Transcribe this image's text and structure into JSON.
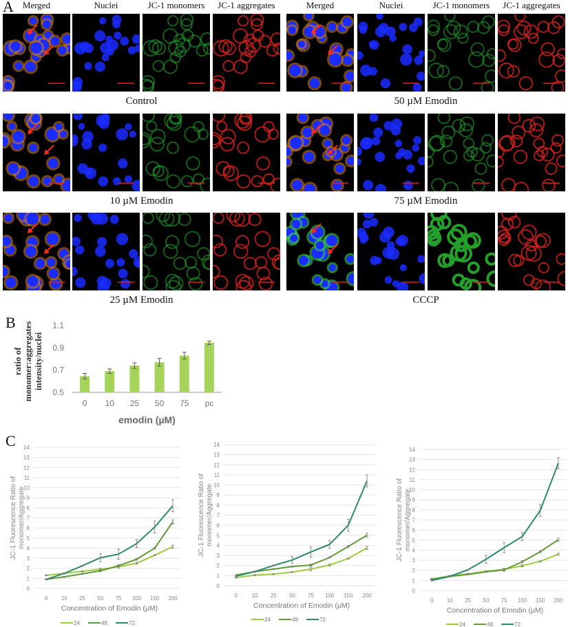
{
  "panel_a": {
    "label": "A",
    "column_headers": [
      "Merged",
      "Nuclei",
      "JC-1 monomers",
      "JC-1 aggregates"
    ],
    "conditions": [
      {
        "caption": "Control",
        "group": "left",
        "row": 0
      },
      {
        "caption": "10 µM Emodin",
        "group": "left",
        "row": 1
      },
      {
        "caption": "25 µM Emodin",
        "group": "left",
        "row": 2
      },
      {
        "caption": "50 µM Emodin",
        "group": "right",
        "row": 0
      },
      {
        "caption": "75 µM Emodin",
        "group": "right",
        "row": 1
      },
      {
        "caption": "CCCP",
        "group": "right",
        "row": 2
      }
    ],
    "channel_colors": {
      "nuclei": "#1a2cff",
      "monomers": "#22a02a",
      "aggregates": "#d8221c",
      "merged_cytoplasm": "#c9781e",
      "arrow": "#ff2a1a"
    }
  },
  "panel_b": {
    "label": "B"
  },
  "panel_c": {
    "label": "C"
  },
  "chart_data": [
    {
      "type": "bar",
      "categories": [
        "0",
        "10",
        "25",
        "50",
        "75",
        "pc"
      ],
      "values": [
        0.645,
        0.69,
        0.74,
        0.77,
        0.83,
        0.945
      ],
      "errors": [
        0.025,
        0.02,
        0.025,
        0.035,
        0.03,
        0.015
      ],
      "ylim": [
        0.5,
        1.1
      ],
      "yticks": [
        "0.5",
        "0.7",
        "0.9",
        "1.1"
      ],
      "xlabel": "emodin (µM)",
      "ylabel": "ratio of monomer:aggregates intensity/nuclei",
      "ylabel_lines": [
        "ratio of",
        "monomer:aggregates",
        "intensity/nuclei"
      ],
      "color": "#a6d45a",
      "grid": false
    },
    {
      "type": "line",
      "categories": [
        "0",
        "10",
        "25",
        "50",
        "75",
        "100",
        "150",
        "200"
      ],
      "ylim": [
        0,
        14
      ],
      "yticks": [
        "0",
        "1",
        "2",
        "3",
        "4",
        "5",
        "6",
        "7",
        "8",
        "9",
        "10",
        "11",
        "12",
        "13",
        "14"
      ],
      "xlabel": "Concentration of Emodin (µM)",
      "ylabel_lines": [
        "JC-1 Fluorescence Ratio of",
        "monomer/Aggregate"
      ],
      "grid": true,
      "legend": "bottom",
      "series": [
        {
          "name": "24",
          "color": "#9ccc3c",
          "values": [
            1.3,
            1.5,
            1.7,
            1.9,
            2.15,
            2.5,
            3.3,
            4.15
          ],
          "errors": [
            0.05,
            0.05,
            0.05,
            0.1,
            0.15,
            0.1,
            0.05,
            0.15
          ]
        },
        {
          "name": "48",
          "color": "#5f9a36",
          "values": [
            0.9,
            1.15,
            1.45,
            1.75,
            2.25,
            2.9,
            4.0,
            6.6
          ],
          "errors": [
            0.05,
            0.05,
            0.05,
            0.1,
            0.1,
            0.1,
            0.1,
            0.2
          ]
        },
        {
          "name": "72",
          "color": "#2a8a6a",
          "values": [
            0.9,
            1.5,
            2.25,
            3.05,
            3.4,
            4.45,
            6.1,
            8.2
          ],
          "errors": [
            0.05,
            0.05,
            0.05,
            0.4,
            0.5,
            0.4,
            0.6,
            0.6
          ]
        }
      ]
    },
    {
      "type": "line",
      "categories": [
        "0",
        "10",
        "25",
        "50",
        "75",
        "100",
        "150",
        "200"
      ],
      "ylim": [
        0,
        14
      ],
      "yticks": [
        "0",
        "1",
        "2",
        "3",
        "4",
        "5",
        "6",
        "7",
        "8",
        "9",
        "10",
        "11",
        "12",
        "13",
        "14"
      ],
      "xlabel": "Concentration of Emodin (µM)",
      "ylabel_lines": [
        "JC-1 Fluorescence Ratio of",
        "monomer/Aggregate"
      ],
      "grid": true,
      "legend": "bottom",
      "series": [
        {
          "name": "24",
          "color": "#9ccc3c",
          "values": [
            0.8,
            1.05,
            1.15,
            1.35,
            1.65,
            2.05,
            2.7,
            3.75
          ],
          "errors": [
            0.05,
            0.05,
            0.05,
            0.05,
            0.2,
            0.1,
            0.05,
            0.15
          ]
        },
        {
          "name": "48",
          "color": "#5f9a36",
          "values": [
            1.05,
            1.4,
            1.65,
            1.9,
            2.05,
            2.8,
            3.9,
            5.0
          ],
          "errors": [
            0.05,
            0.05,
            0.05,
            0.05,
            0.1,
            0.05,
            0.1,
            0.2
          ]
        },
        {
          "name": "72",
          "color": "#2a8a6a",
          "values": [
            0.95,
            1.4,
            2.0,
            2.55,
            3.35,
            4.1,
            6.0,
            10.4
          ],
          "errors": [
            0.05,
            0.05,
            0.05,
            0.35,
            0.5,
            0.4,
            0.6,
            0.6
          ]
        }
      ]
    },
    {
      "type": "line",
      "categories": [
        "0",
        "10",
        "25",
        "50",
        "75",
        "100",
        "150",
        "200"
      ],
      "ylim": [
        0,
        14
      ],
      "yticks": [
        "0",
        "1",
        "2",
        "3",
        "4",
        "5",
        "6",
        "7",
        "8",
        "9",
        "10",
        "11",
        "12",
        "13",
        "14"
      ],
      "xlabel": "Concentration of Emodin (µM)",
      "ylabel_lines": [
        "JC-1 Fluorescence Ratio of",
        "monomer/Aggregate"
      ],
      "grid": true,
      "legend": "bottom",
      "series": [
        {
          "name": "24",
          "color": "#9ccc3c",
          "values": [
            1.15,
            1.45,
            1.65,
            1.9,
            2.1,
            2.45,
            2.9,
            3.6
          ],
          "errors": [
            0.05,
            0.05,
            0.05,
            0.05,
            0.1,
            0.1,
            0.05,
            0.1
          ]
        },
        {
          "name": "48",
          "color": "#5f9a36",
          "values": [
            1.1,
            1.4,
            1.6,
            1.85,
            2.05,
            2.85,
            3.85,
            5.05
          ],
          "errors": [
            0.05,
            0.05,
            0.05,
            0.05,
            0.15,
            0.1,
            0.1,
            0.15
          ]
        },
        {
          "name": "72",
          "color": "#2a8a6a",
          "values": [
            1.0,
            1.4,
            2.05,
            3.1,
            4.25,
            5.35,
            7.95,
            12.65
          ],
          "errors": [
            0.05,
            0.05,
            0.05,
            0.4,
            0.5,
            0.4,
            0.6,
            0.55
          ]
        }
      ]
    }
  ]
}
